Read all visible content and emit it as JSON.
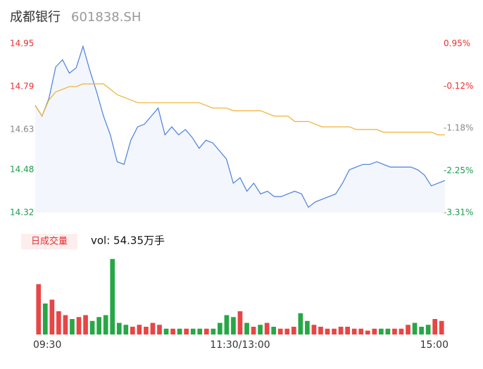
{
  "chart_data": [
    {
      "type": "line",
      "title": "成都银行",
      "subtitle": "601838.SH",
      "ylim": [
        14.32,
        14.95
      ],
      "yticks": [
        14.95,
        14.79,
        14.63,
        14.48,
        14.32
      ],
      "y2lim": [
        -3.31,
        0.95
      ],
      "y2ticks": [
        {
          "value": 0.95,
          "label": "0.95%"
        },
        {
          "value": -0.12,
          "label": "-0.12%"
        },
        {
          "value": -1.18,
          "label": "-1.18%"
        },
        {
          "value": -2.25,
          "label": "-2.25%"
        },
        {
          "value": -3.31,
          "label": "-3.31%"
        }
      ],
      "tick_colors": [
        "#e8302f",
        "#e8302f",
        "#888888",
        "#1a9e4a",
        "#1a9e4a"
      ],
      "area_color": "#f3f6fc",
      "series": [
        {
          "name": "price",
          "color": "#4a7fe0",
          "values": [
            14.72,
            14.68,
            14.745,
            14.863,
            14.89,
            14.84,
            14.86,
            14.94,
            14.85,
            14.77,
            14.68,
            14.61,
            14.51,
            14.5,
            14.59,
            14.64,
            14.65,
            14.68,
            14.71,
            14.61,
            14.64,
            14.61,
            14.63,
            14.6,
            14.56,
            14.59,
            14.58,
            14.55,
            14.52,
            14.43,
            14.45,
            14.4,
            14.43,
            14.39,
            14.4,
            14.38,
            14.38,
            14.39,
            14.4,
            14.39,
            14.34,
            14.36,
            14.37,
            14.38,
            14.39,
            14.43,
            14.48,
            14.49,
            14.5,
            14.5,
            14.51,
            14.5,
            14.49,
            14.49,
            14.49,
            14.49,
            14.48,
            14.46,
            14.42,
            14.43,
            14.44
          ]
        },
        {
          "name": "avg",
          "color": "#f0b030",
          "values": [
            14.72,
            14.68,
            14.74,
            14.77,
            14.78,
            14.79,
            14.79,
            14.8,
            14.8,
            14.8,
            14.8,
            14.78,
            14.76,
            14.75,
            14.74,
            14.73,
            14.73,
            14.73,
            14.73,
            14.73,
            14.73,
            14.73,
            14.73,
            14.73,
            14.73,
            14.72,
            14.71,
            14.71,
            14.71,
            14.7,
            14.7,
            14.7,
            14.7,
            14.7,
            14.69,
            14.68,
            14.68,
            14.68,
            14.66,
            14.66,
            14.66,
            14.65,
            14.64,
            14.64,
            14.64,
            14.64,
            14.64,
            14.63,
            14.63,
            14.63,
            14.63,
            14.62,
            14.62,
            14.62,
            14.62,
            14.62,
            14.62,
            14.62,
            14.62,
            14.61,
            14.61
          ]
        }
      ]
    },
    {
      "type": "bar",
      "title": "日成交量",
      "annotation": "vol: 54.35万手",
      "up_color": "#e84545",
      "down_color": "#27a745",
      "ylim": [
        0,
        4
      ],
      "categories": [
        "09:30",
        null,
        null,
        null,
        null,
        null,
        null,
        null,
        null,
        null,
        null,
        null,
        null,
        null,
        null,
        null,
        null,
        null,
        null,
        null,
        null,
        null,
        null,
        null,
        null,
        null,
        null,
        null,
        null,
        null,
        "11:30/13:00",
        null,
        null,
        null,
        null,
        null,
        null,
        null,
        null,
        null,
        null,
        null,
        null,
        null,
        null,
        null,
        null,
        null,
        null,
        null,
        null,
        null,
        null,
        null,
        null,
        null,
        null,
        null,
        null,
        null,
        "15:00"
      ],
      "values": [
        2.6,
        1.6,
        1.8,
        1.2,
        1.0,
        0.8,
        0.9,
        1.0,
        0.7,
        0.9,
        1.0,
        3.9,
        0.6,
        0.5,
        0.4,
        0.5,
        0.4,
        0.6,
        0.5,
        0.3,
        0.3,
        0.3,
        0.3,
        0.3,
        0.3,
        0.3,
        0.3,
        0.6,
        1.0,
        0.9,
        1.2,
        0.6,
        0.4,
        0.5,
        0.6,
        0.4,
        0.3,
        0.3,
        0.4,
        1.1,
        0.7,
        0.5,
        0.4,
        0.3,
        0.3,
        0.4,
        0.4,
        0.3,
        0.3,
        0.2,
        0.3,
        0.3,
        0.3,
        0.3,
        0.3,
        0.5,
        0.6,
        0.4,
        0.5,
        0.8,
        0.7
      ]
    }
  ]
}
